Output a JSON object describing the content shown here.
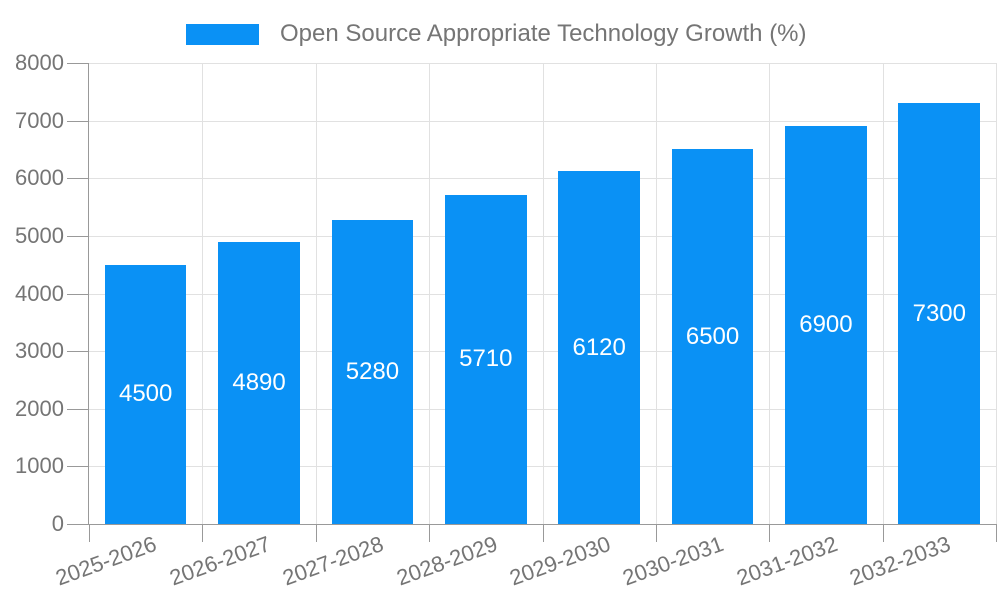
{
  "chart": {
    "legend": {
      "label": "Open Source Appropriate Technology Growth (%)"
    },
    "colors": {
      "bar": "#0a91f5",
      "axis_line": "#999999",
      "grid_line": "#e1e1e1",
      "tick_text": "#757575",
      "value_label": "#ffffff",
      "background": "#ffffff"
    }
  },
  "chart_data": {
    "type": "bar",
    "title": "Open Source Appropriate Technology Growth (%)",
    "categories": [
      "2025-2026",
      "2026-2027",
      "2027-2028",
      "2028-2029",
      "2029-2030",
      "2030-2031",
      "2031-2032",
      "2032-2033"
    ],
    "values": [
      4500,
      4890,
      5280,
      5710,
      6120,
      6500,
      6900,
      7300
    ],
    "value_labels_shown": [
      "4500",
      "4890",
      "5280",
      "5710",
      "6120",
      "6500",
      "6900",
      "7300"
    ],
    "xlabel": "",
    "ylabel": "",
    "ylim": [
      0,
      8000
    ],
    "ytick_step": 1000,
    "yticks": [
      0,
      1000,
      2000,
      3000,
      4000,
      5000,
      6000,
      7000,
      8000
    ],
    "grid": true,
    "legend_position": "top-center",
    "bar_color": "#0a91f5",
    "value_label_position": "inside-center",
    "x_label_rotation_deg": -20
  }
}
